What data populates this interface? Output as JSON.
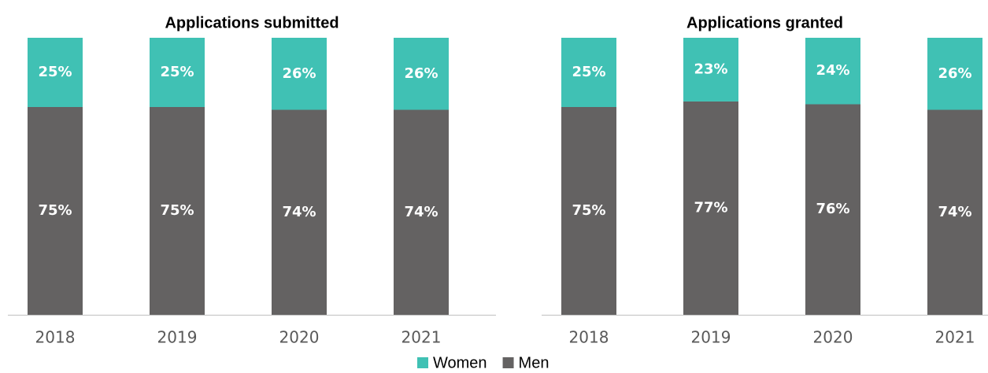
{
  "chart_data": [
    {
      "type": "stacked_bar",
      "title": "Applications submitted",
      "categories": [
        "2018",
        "2019",
        "2020",
        "2021"
      ],
      "ylim": [
        0,
        100
      ],
      "series": [
        {
          "name": "Men",
          "color": "#646262",
          "values": [
            75,
            75,
            74,
            74
          ],
          "value_labels": [
            "75%",
            "75%",
            "74%",
            "74%"
          ]
        },
        {
          "name": "Women",
          "color": "#40c1b4",
          "values": [
            25,
            25,
            26,
            26
          ],
          "value_labels": [
            "25%",
            "25%",
            "26%",
            "26%"
          ]
        }
      ]
    },
    {
      "type": "stacked_bar",
      "title": "Applications granted",
      "categories": [
        "2018",
        "2019",
        "2020",
        "2021"
      ],
      "ylim": [
        0,
        100
      ],
      "series": [
        {
          "name": "Men",
          "color": "#646262",
          "values": [
            75,
            77,
            76,
            74
          ],
          "value_labels": [
            "75%",
            "77%",
            "76%",
            "74%"
          ]
        },
        {
          "name": "Women",
          "color": "#40c1b4",
          "values": [
            25,
            23,
            24,
            26
          ],
          "value_labels": [
            "25%",
            "23%",
            "24%",
            "26%"
          ]
        }
      ]
    }
  ]
}
